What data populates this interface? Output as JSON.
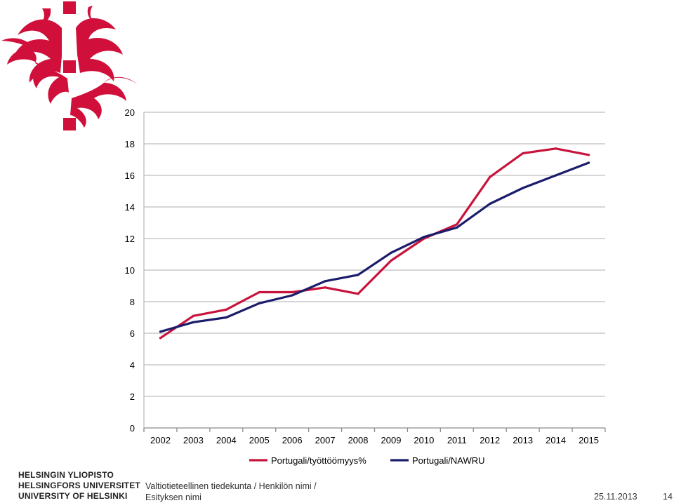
{
  "branding": {
    "logo_icon": "university-flame-logo-icon",
    "brand_color": "#d0103a",
    "university_lines": [
      "HELSINGIN YLIOPISTO",
      "HELSINGFORS UNIVERSITET",
      "UNIVERSITY OF HELSINKI"
    ]
  },
  "footer": {
    "line1": "Valtiotieteellinen tiedekunta / Henkilön nimi /",
    "line2": "Esityksen nimi",
    "date": "25.11.2013",
    "page_number": "14"
  },
  "chart_data": {
    "type": "line",
    "title": "",
    "xlabel": "",
    "ylabel": "",
    "categories": [
      "2002",
      "2003",
      "2004",
      "2005",
      "2006",
      "2007",
      "2008",
      "2009",
      "2010",
      "2011",
      "2012",
      "2013",
      "2014",
      "2015"
    ],
    "ylim": [
      0,
      20
    ],
    "yticks": [
      0,
      2,
      4,
      6,
      8,
      10,
      12,
      14,
      16,
      18,
      20
    ],
    "grid": true,
    "legend_position": "bottom",
    "series": [
      {
        "name": "Portugali/työttöömyys%",
        "color": "#c8143c",
        "values": [
          5.7,
          7.1,
          7.5,
          8.6,
          8.6,
          8.9,
          8.5,
          10.6,
          12.0,
          12.9,
          15.9,
          17.4,
          17.7,
          17.3
        ]
      },
      {
        "name": "Portugali/NAWRU",
        "color": "#1b1d6b",
        "values": [
          6.1,
          6.7,
          7.0,
          7.9,
          8.4,
          9.3,
          9.7,
          11.1,
          12.1,
          12.7,
          14.2,
          15.2,
          16.0,
          16.8
        ]
      }
    ]
  }
}
